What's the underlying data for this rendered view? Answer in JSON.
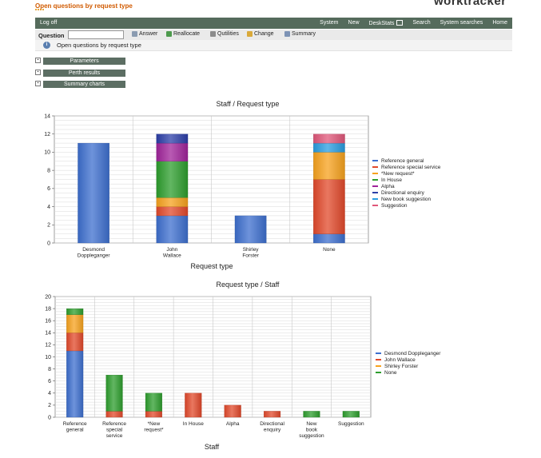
{
  "app": {
    "title": "Open questions by request type",
    "brand": "worktracker"
  },
  "nav": {
    "logoff": "Log off",
    "menu": [
      "System",
      "New",
      "DeskStats",
      "Search",
      "System searches",
      "Home"
    ]
  },
  "question_bar": {
    "label": "Question",
    "input_value": "",
    "tools": [
      "Answer",
      "Reallocate",
      "Qutilities",
      "Change",
      "Summary"
    ]
  },
  "info": {
    "text": "Open questions by request type"
  },
  "sections": [
    "Parameters",
    "Perth results",
    "Summary charts"
  ],
  "colors": {
    "Reference general": "#3d6fcf",
    "Reference special service": "#e2492b",
    "*New request*": "#f7a21d",
    "In House": "#2d9e2d",
    "Alpha": "#a0239a",
    "Directional enquiry": "#2c3fa8",
    "New book suggestion": "#2a9de0",
    "Suggestion": "#e0577a",
    "Desmond Doppleganger": "#3d6fcf",
    "John Wallace": "#e2492b",
    "Shirley Forster": "#f7a21d",
    "None": "#2d9e2d"
  },
  "chart_data": [
    {
      "type": "bar",
      "stacked": true,
      "title": "Staff / Request type",
      "xlabel": "Request type",
      "ylabel": "",
      "ylim": [
        0,
        14
      ],
      "yticks": [
        0,
        2,
        4,
        6,
        8,
        10,
        12,
        14
      ],
      "categories": [
        "Desmond\nDoppleganger",
        "John\nWallace",
        "Shirley\nForster",
        "None"
      ],
      "series": [
        {
          "name": "Reference general",
          "values": [
            11,
            3,
            3,
            1
          ]
        },
        {
          "name": "Reference special service",
          "values": [
            0,
            1,
            0,
            6
          ]
        },
        {
          "name": "*New request*",
          "values": [
            0,
            1,
            0,
            3
          ]
        },
        {
          "name": "In House",
          "values": [
            0,
            4,
            0,
            0
          ]
        },
        {
          "name": "Alpha",
          "values": [
            0,
            2,
            0,
            0
          ]
        },
        {
          "name": "Directional enquiry",
          "values": [
            0,
            1,
            0,
            0
          ]
        },
        {
          "name": "New book suggestion",
          "values": [
            0,
            0,
            0,
            1
          ]
        },
        {
          "name": "Suggestion",
          "values": [
            0,
            0,
            0,
            1
          ]
        }
      ],
      "grid": true,
      "legend": "right"
    },
    {
      "type": "bar",
      "stacked": true,
      "title": "Request type / Staff",
      "xlabel": "Staff",
      "ylabel": "",
      "ylim": [
        0,
        20
      ],
      "yticks": [
        0,
        2,
        4,
        6,
        8,
        10,
        12,
        14,
        16,
        18,
        20
      ],
      "categories": [
        "Reference\ngeneral",
        "Reference\nspecial\nservice",
        "*New\nrequest*",
        "In House",
        "Alpha",
        "Directional\nenquiry",
        "New\nbook\nsuggestion",
        "Suggestion"
      ],
      "series": [
        {
          "name": "Desmond Doppleganger",
          "values": [
            11,
            0,
            0,
            0,
            0,
            0,
            0,
            0
          ]
        },
        {
          "name": "John Wallace",
          "values": [
            3,
            1,
            1,
            4,
            2,
            1,
            0,
            0
          ]
        },
        {
          "name": "Shirley Forster",
          "values": [
            3,
            0,
            0,
            0,
            0,
            0,
            0,
            0
          ]
        },
        {
          "name": "None",
          "values": [
            1,
            6,
            3,
            0,
            0,
            0,
            1,
            1
          ]
        }
      ],
      "grid": true,
      "legend": "right"
    }
  ]
}
